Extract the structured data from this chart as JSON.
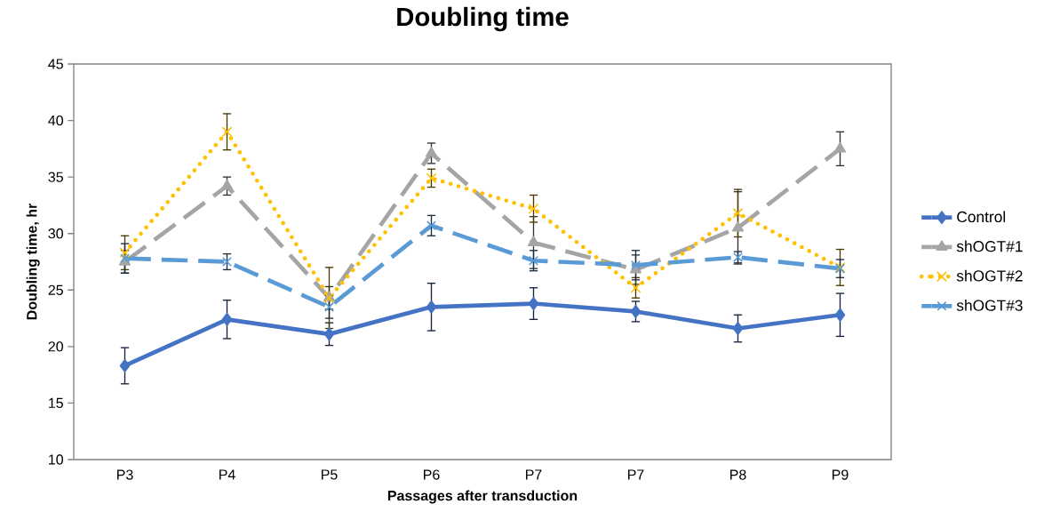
{
  "chart_data": {
    "type": "line",
    "title": "Doubling time",
    "xlabel": "Passages after transduction",
    "ylabel": "Doubling time, hr",
    "categories": [
      "P3",
      "P4",
      "P5",
      "P6",
      "P7",
      "P7",
      "P8",
      "P9"
    ],
    "ylim": [
      10,
      45
    ],
    "yticks": [
      10,
      15,
      20,
      25,
      30,
      35,
      40,
      45
    ],
    "grid": false,
    "legend": "right",
    "series": [
      {
        "name": "Control",
        "color": "#4472c4",
        "marker": "diamond",
        "line_style": "solid",
        "values": [
          18.3,
          22.4,
          21.1,
          23.5,
          23.8,
          23.1,
          21.6,
          22.8
        ],
        "errors": [
          1.6,
          1.7,
          1.0,
          2.1,
          1.4,
          0.9,
          1.2,
          1.9
        ]
      },
      {
        "name": "shOGT#1",
        "color": "#a5a5a5",
        "marker": "triangle",
        "line_style": "dashed",
        "values": [
          27.5,
          34.2,
          24.3,
          37.1,
          29.2,
          26.8,
          30.5,
          37.5
        ],
        "errors": [
          1.0,
          0.8,
          1.0,
          0.9,
          2.3,
          1.3,
          3.2,
          1.5
        ]
      },
      {
        "name": "shOGT#2",
        "color": "#ffc000",
        "marker": "cross",
        "line_style": "dotted",
        "values": [
          28.3,
          39.0,
          24.3,
          34.9,
          32.2,
          25.2,
          31.8,
          27.0
        ],
        "errors": [
          1.5,
          1.6,
          2.7,
          0.8,
          1.2,
          0.9,
          2.1,
          1.6
        ]
      },
      {
        "name": "shOGT#3",
        "color": "#5b9bd5",
        "marker": "cross",
        "line_style": "dashed",
        "values": [
          27.8,
          27.5,
          23.5,
          30.7,
          27.6,
          27.2,
          27.9,
          26.9
        ],
        "errors": [
          1.3,
          0.7,
          1.0,
          0.9,
          0.9,
          1.3,
          0.5,
          0.8
        ]
      }
    ]
  }
}
